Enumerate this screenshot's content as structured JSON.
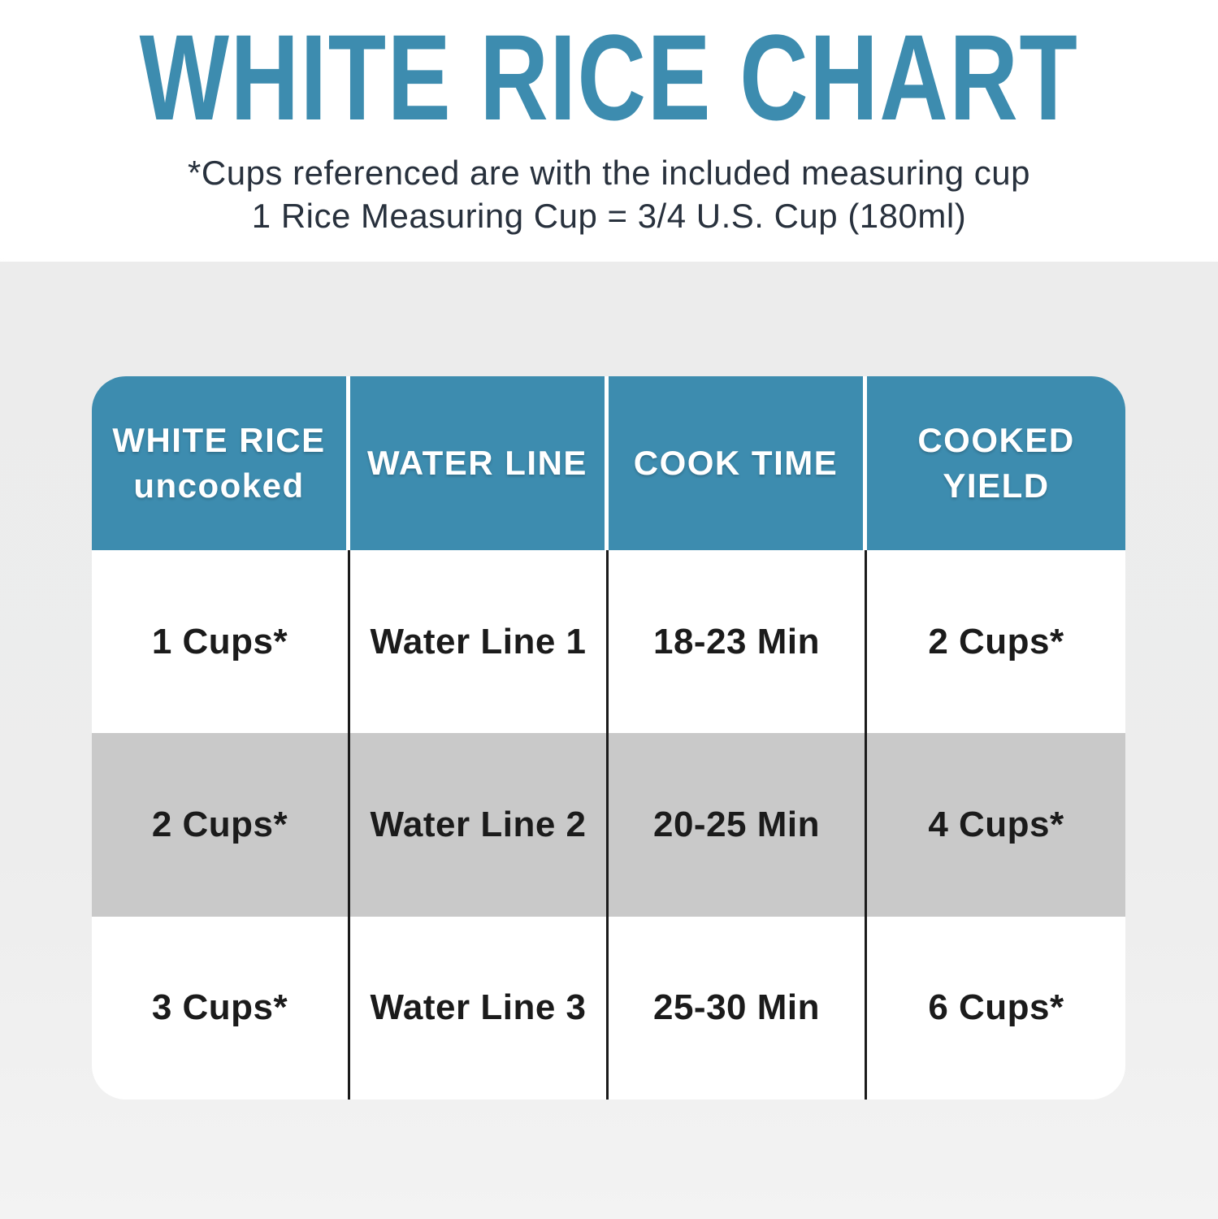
{
  "page": {
    "title": "WHITE RICE CHART",
    "subtitle_line1": "*Cups referenced are with the included measuring cup",
    "subtitle_line2": "1 Rice Measuring Cup = 3/4 U.S. Cup (180ml)"
  },
  "colors": {
    "accent_teal": "#3D8CAF",
    "header_text": "#FFFFFF",
    "alt_row_gray": "#C9C9C9",
    "row_white": "#FFFFFF",
    "body_text": "#1B1B1B",
    "subtitle_text": "#28313D",
    "page_background_gray": "#EDEDED",
    "top_background_white": "#FFFFFF"
  },
  "chart_data": {
    "type": "table",
    "title": "WHITE RICE CHART",
    "columns": [
      {
        "line1": "WHITE RICE",
        "line2": "uncooked"
      },
      {
        "line1": "WATER LINE",
        "line2": ""
      },
      {
        "line1": "COOK TIME",
        "line2": ""
      },
      {
        "line1": "COOKED",
        "line2": "YIELD"
      }
    ],
    "rows": [
      [
        "1 Cups*",
        "Water Line 1",
        "18-23 Min",
        "2 Cups*"
      ],
      [
        "2 Cups*",
        "Water Line 2",
        "20-25 Min",
        "4 Cups*"
      ],
      [
        "3 Cups*",
        "Water Line 3",
        "25-30 Min",
        "6 Cups*"
      ]
    ],
    "layout": {
      "header_background": "#3D8CAF",
      "alt_shaded_row_index": 1,
      "column_count": 4,
      "row_count": 3
    }
  }
}
